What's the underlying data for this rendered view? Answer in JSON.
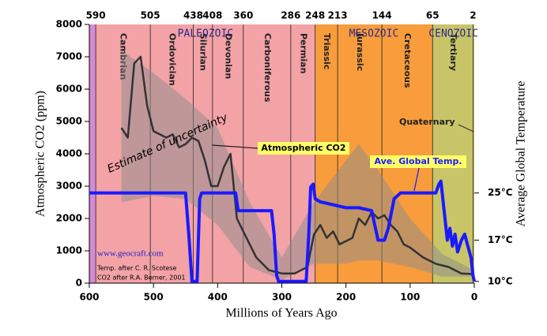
{
  "chart_data": {
    "type": "line",
    "xlabel": "Millions of Years Ago",
    "ylabel": "Atmospheric CO2 (ppm)",
    "y2label": "Average Global Temperature",
    "xlim": [
      600,
      0
    ],
    "xticks": [
      600,
      500,
      400,
      300,
      200,
      100,
      0
    ],
    "ylim": [
      0,
      8000
    ],
    "yticks": [
      0,
      1000,
      2000,
      3000,
      4000,
      5000,
      6000,
      7000,
      8000
    ],
    "y2lim": [
      9.7,
      53.6
    ],
    "y2ticks": [
      {
        "value": 10,
        "label": "10°C"
      },
      {
        "value": 17,
        "label": "17°C"
      },
      {
        "value": 25,
        "label": "25°C"
      }
    ],
    "boundaries": [
      590,
      505,
      438,
      408,
      360,
      286,
      248,
      213,
      144,
      65,
      2
    ],
    "periods": [
      {
        "name": null,
        "color": "#d58ad5"
      },
      {
        "name": "Cambrian",
        "color": "#f3a2a6"
      },
      {
        "name": "Ordovician",
        "color": "#f3a2a6"
      },
      {
        "name": "Silurian",
        "color": "#f3a2a6"
      },
      {
        "name": "Devonian",
        "color": "#f3a2a6"
      },
      {
        "name": "Carboniferous",
        "color": "#f3a2a6"
      },
      {
        "name": "Permian",
        "color": "#f3a2a6"
      },
      {
        "name": "Triassic",
        "color": "#f89c3c"
      },
      {
        "name": "Jurassic",
        "color": "#f89c3c"
      },
      {
        "name": "Cretaceous",
        "color": "#f89c3c"
      },
      {
        "name": "Tertiary",
        "color": "#c8c468"
      },
      {
        "name": "Quaternary",
        "color": "#c8c468"
      }
    ],
    "eras": [
      {
        "name": "PALEOZOIC",
        "start": 590,
        "end": 248
      },
      {
        "name": "MESOZOIC",
        "start": 248,
        "end": 65
      },
      {
        "name": "CENOZOIC",
        "start": 65,
        "end": 0
      }
    ],
    "band": {
      "color": "#8c8c8c",
      "x": [
        550,
        500,
        450,
        400,
        350,
        300,
        250,
        200,
        180,
        150,
        100,
        50,
        0
      ],
      "upper": [
        7200,
        6500,
        5700,
        4800,
        2500,
        800,
        2500,
        3800,
        4300,
        3500,
        2000,
        900,
        400
      ],
      "lower": [
        2500,
        2700,
        2600,
        1800,
        500,
        100,
        600,
        600,
        700,
        700,
        500,
        200,
        200
      ]
    },
    "series": [
      {
        "name": "Atmospheric CO2",
        "color": "#333333",
        "x": [
          550,
          540,
          530,
          520,
          510,
          500,
          490,
          480,
          470,
          460,
          450,
          440,
          430,
          420,
          410,
          400,
          390,
          380,
          370,
          360,
          340,
          320,
          300,
          280,
          260,
          250,
          240,
          230,
          220,
          210,
          200,
          190,
          180,
          170,
          160,
          150,
          140,
          130,
          120,
          110,
          100,
          80,
          60,
          40,
          20,
          0
        ],
        "values": [
          4800,
          4500,
          6800,
          7000,
          5500,
          4700,
          4600,
          4500,
          4600,
          4200,
          4300,
          4500,
          4400,
          3800,
          3000,
          3000,
          3600,
          4000,
          2000,
          1600,
          800,
          400,
          300,
          300,
          500,
          1500,
          1800,
          1400,
          1600,
          1200,
          1300,
          1400,
          2000,
          1800,
          2200,
          2000,
          2100,
          1800,
          1600,
          1200,
          1100,
          800,
          600,
          500,
          300,
          280
        ]
      },
      {
        "name": "Ave. Global Temp.",
        "color": "#1a1aff",
        "axis": "y2",
        "x": [
          600,
          450,
          445,
          440,
          432,
          428,
          425,
          372,
          368,
          316,
          312,
          308,
          305,
          262,
          258,
          255,
          251,
          248,
          240,
          220,
          200,
          180,
          160,
          150,
          140,
          134,
          125,
          115,
          60,
          55,
          52,
          49,
          45,
          42,
          38,
          34,
          30,
          26,
          20,
          15,
          10,
          5,
          2,
          0
        ],
        "values": [
          25,
          25,
          18,
          10,
          10,
          24,
          25,
          25,
          22,
          22,
          18,
          11,
          10,
          10,
          18,
          26,
          26.5,
          24,
          23.5,
          23,
          22.5,
          22.5,
          22,
          17,
          17,
          19,
          24,
          25,
          25,
          26.5,
          27,
          24,
          20,
          17,
          19,
          16,
          18,
          15,
          17,
          18,
          16,
          14,
          11,
          10
        ]
      }
    ],
    "annotations": [
      "Estimate of uncertainty",
      "www.geocraft.com",
      "Temp. after C. R. Scotese",
      "CO2 after R.A. Berner, 2001"
    ]
  }
}
